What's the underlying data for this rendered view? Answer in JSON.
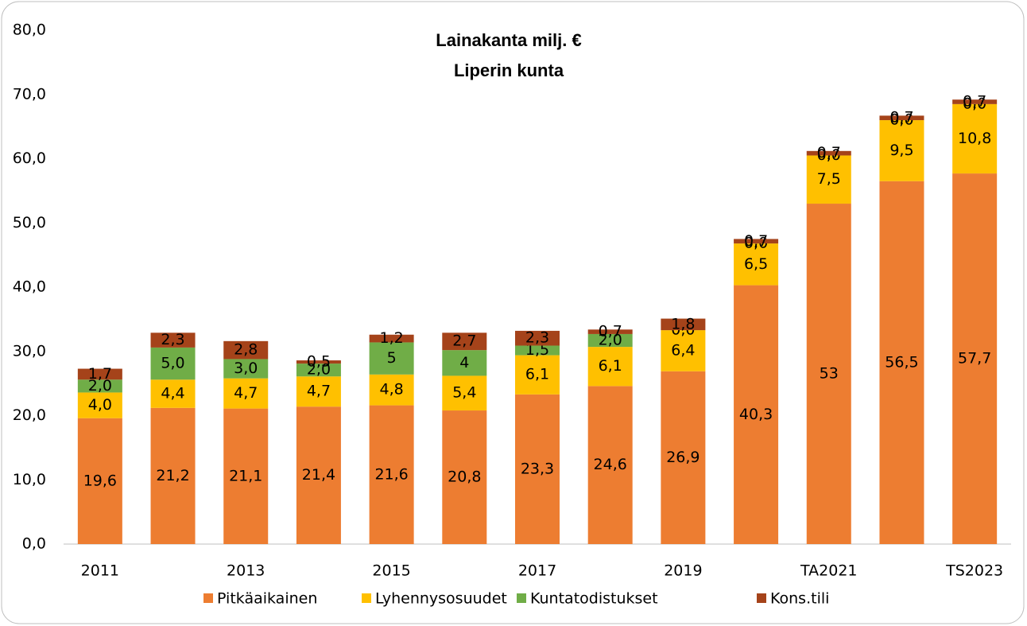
{
  "chart_data": {
    "type": "stacked_bar",
    "title": "Lainakanta milj. €",
    "subtitle": "Liperin kunta",
    "categories": [
      "2011",
      null,
      "2013",
      null,
      "2015",
      null,
      "2017",
      null,
      "2019",
      null,
      "TA2021",
      null,
      "TS2023"
    ],
    "series": [
      {
        "name": "Pitkäaikainen",
        "color": "#ed7d31",
        "values": [
          19.6,
          21.2,
          21.1,
          21.4,
          21.6,
          20.8,
          23.3,
          24.6,
          26.9,
          40.3,
          53,
          56.5,
          57.7
        ],
        "value_labels": [
          "19,6",
          "21,2",
          "21,1",
          "21,4",
          "21,6",
          "20,8",
          "23,3",
          "24,6",
          "26,9",
          "40,3",
          "53",
          "56,5",
          "57,7"
        ]
      },
      {
        "name": "Lyhennysosuudet",
        "color": "#ffc000",
        "values": [
          4.0,
          4.4,
          4.7,
          4.7,
          4.8,
          5.4,
          6.1,
          6.1,
          6.4,
          6.5,
          7.5,
          9.5,
          10.8
        ],
        "value_labels": [
          "4,0",
          "4,4",
          "4,7",
          "4,7",
          "4,8",
          "5,4",
          "6,1",
          "6,1",
          "6,4",
          "6,5",
          "7,5",
          "9,5",
          "10,8"
        ]
      },
      {
        "name": "Kuntatodistukset",
        "color": "#70ad47",
        "values": [
          2.0,
          5.0,
          3.0,
          2.0,
          5,
          4,
          1.5,
          2.0,
          0,
          0,
          0,
          0,
          0
        ],
        "value_labels": [
          "2,0",
          "5,0",
          "3,0",
          "2,0",
          "5",
          "4",
          "1,5",
          "2,0",
          "0,0",
          "0,0",
          "0,0",
          "0,0",
          "0,0"
        ]
      },
      {
        "name": "Kons.tili",
        "color": "#a5431a",
        "values": [
          1.7,
          2.3,
          2.8,
          0.5,
          1.2,
          2.7,
          2.3,
          0.7,
          1.8,
          0.7,
          0.7,
          0.7,
          0.7
        ],
        "value_labels": [
          "1,7",
          "2,3",
          "2,8",
          "0,5",
          "1,2",
          "2,7",
          "2,3",
          "0,7",
          "1,8",
          "0,7",
          "0,7",
          "0,7",
          "0,7"
        ]
      }
    ],
    "ylim": [
      0,
      80
    ],
    "yticks": [
      {
        "value": 0,
        "label": "0,0"
      },
      {
        "value": 10,
        "label": "10,0"
      },
      {
        "value": 20,
        "label": "20,0"
      },
      {
        "value": 30,
        "label": "30,0"
      },
      {
        "value": 40,
        "label": "40,0"
      },
      {
        "value": 50,
        "label": "50,0"
      },
      {
        "value": 60,
        "label": "60,0"
      },
      {
        "value": 70,
        "label": "70,0"
      },
      {
        "value": 80,
        "label": "80,0"
      }
    ],
    "legend": "bottom"
  }
}
